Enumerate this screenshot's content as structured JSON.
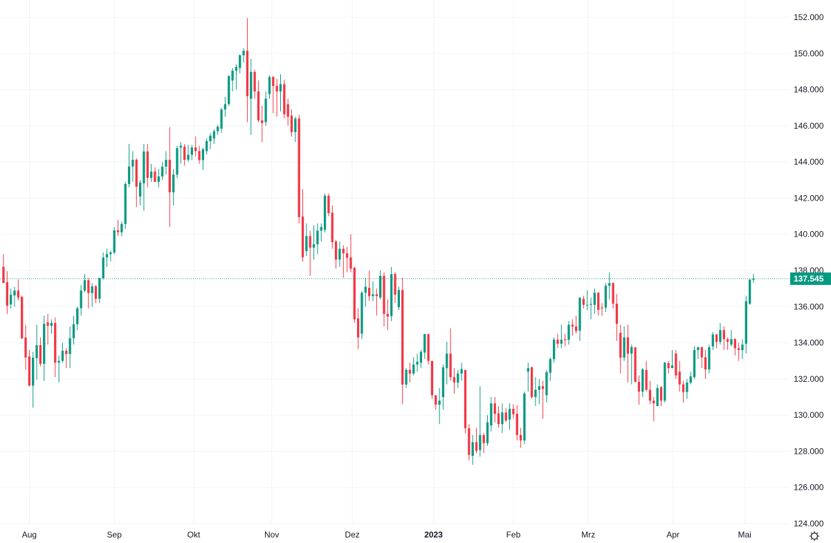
{
  "chart_data": {
    "type": "candlestick",
    "title": "",
    "xlabel": "",
    "ylabel": "",
    "ylim": [
      124,
      152
    ],
    "grid": true,
    "y_ticks": [
      "124.000",
      "126.000",
      "128.000",
      "130.000",
      "132.000",
      "134.000",
      "136.000",
      "138.000",
      "140.000",
      "142.000",
      "144.000",
      "146.000",
      "148.000",
      "150.000",
      "152.000"
    ],
    "x_ticks": [
      {
        "label": "Aug",
        "index": 7
      },
      {
        "label": "Sep",
        "index": 30
      },
      {
        "label": "Okt",
        "index": 51.5
      },
      {
        "label": "Nov",
        "index": 72.6
      },
      {
        "label": "Dez",
        "index": 94.4
      },
      {
        "label": "2023",
        "index": 116.4,
        "bold": true
      },
      {
        "label": "Feb",
        "index": 138
      },
      {
        "label": "Mrz",
        "index": 158.3
      },
      {
        "label": "Apr",
        "index": 181.2
      },
      {
        "label": "Mai",
        "index": 200.6
      }
    ],
    "last_price": 137.545,
    "last_price_label": "137.545",
    "colors": {
      "up": "#089981",
      "down": "#f23645",
      "grid": "#f0f3fa",
      "text": "#131722"
    },
    "ohlc": [
      [
        138.2,
        138.9,
        137.3,
        137.3
      ],
      [
        137.35,
        137.96,
        135.6,
        136.05
      ],
      [
        136.12,
        137.0,
        135.9,
        136.66
      ],
      [
        136.62,
        137.1,
        136.0,
        136.89
      ],
      [
        136.89,
        137.5,
        136.35,
        136.5
      ],
      [
        136.54,
        136.6,
        134.2,
        134.25
      ],
      [
        134.29,
        135.0,
        132.5,
        133.19
      ],
      [
        133.25,
        133.6,
        131.6,
        131.63
      ],
      [
        131.63,
        133.5,
        130.42,
        133.18
      ],
      [
        133.15,
        135.0,
        131.96,
        133.87
      ],
      [
        133.87,
        134.3,
        132.7,
        132.83
      ],
      [
        132.84,
        135.5,
        131.9,
        135.05
      ],
      [
        135.13,
        135.6,
        133.9,
        134.94
      ],
      [
        134.94,
        135.3,
        134.5,
        135.1
      ],
      [
        135.1,
        135.4,
        132.1,
        132.9
      ],
      [
        132.9,
        133.3,
        131.8,
        133.0
      ],
      [
        133.0,
        134.0,
        132.9,
        133.56
      ],
      [
        133.56,
        133.7,
        132.6,
        133.38
      ],
      [
        133.38,
        134.9,
        132.6,
        134.25
      ],
      [
        134.25,
        135.5,
        133.9,
        135.03
      ],
      [
        135.03,
        136.0,
        134.7,
        135.91
      ],
      [
        135.91,
        137.2,
        135.5,
        136.89
      ],
      [
        136.89,
        137.8,
        136.8,
        137.46
      ],
      [
        137.46,
        137.6,
        135.9,
        136.75
      ],
      [
        136.75,
        137.3,
        136.0,
        137.12
      ],
      [
        137.12,
        137.2,
        136.2,
        136.43
      ],
      [
        136.43,
        137.6,
        136.2,
        137.58
      ],
      [
        137.58,
        139.0,
        137.5,
        138.72
      ],
      [
        138.72,
        139.2,
        138.2,
        138.9
      ],
      [
        138.9,
        139.1,
        138.5,
        139.0
      ],
      [
        138.99,
        140.4,
        138.9,
        140.22
      ],
      [
        140.22,
        140.8,
        139.9,
        140.11
      ],
      [
        140.11,
        140.7,
        139.9,
        140.57
      ],
      [
        140.57,
        142.9,
        140.3,
        142.78
      ],
      [
        142.78,
        145.0,
        142.6,
        143.75
      ],
      [
        143.75,
        144.6,
        142.9,
        144.12
      ],
      [
        144.12,
        144.2,
        141.5,
        142.63
      ],
      [
        142.09,
        143.0,
        141.6,
        142.86
      ],
      [
        142.82,
        145.0,
        141.3,
        144.58
      ],
      [
        144.58,
        145.0,
        142.6,
        143.12
      ],
      [
        143.12,
        143.9,
        142.9,
        143.47
      ],
      [
        143.47,
        143.7,
        142.9,
        142.9
      ],
      [
        142.9,
        143.6,
        142.6,
        143.2
      ],
      [
        143.2,
        144.0,
        143.0,
        143.74
      ],
      [
        143.74,
        144.6,
        143.3,
        144.12
      ],
      [
        144.12,
        145.92,
        140.4,
        142.32
      ],
      [
        142.32,
        143.6,
        141.6,
        143.3
      ],
      [
        143.3,
        144.9,
        143.1,
        144.77
      ],
      [
        144.8,
        145.1,
        143.9,
        144.9
      ],
      [
        144.85,
        145.0,
        143.8,
        144.12
      ],
      [
        144.12,
        144.95,
        144.0,
        144.4
      ],
      [
        144.4,
        144.95,
        144.1,
        144.8
      ],
      [
        144.8,
        145.4,
        144.3,
        144.6
      ],
      [
        144.6,
        144.9,
        143.9,
        144.1
      ],
      [
        144.1,
        144.8,
        143.55,
        144.7
      ],
      [
        144.6,
        145.3,
        144.4,
        145.15
      ],
      [
        145.15,
        145.6,
        144.7,
        145.45
      ],
      [
        145.3,
        145.8,
        145.0,
        145.7
      ],
      [
        145.7,
        146.05,
        145.5,
        145.95
      ],
      [
        145.84,
        147.0,
        145.6,
        146.9
      ],
      [
        146.9,
        147.6,
        146.5,
        147.2
      ],
      [
        147.2,
        148.8,
        147.1,
        148.75
      ],
      [
        148.5,
        149.2,
        147.9,
        149.05
      ],
      [
        149.05,
        149.4,
        148.0,
        149.25
      ],
      [
        149.2,
        149.95,
        148.9,
        149.9
      ],
      [
        149.9,
        150.3,
        149.5,
        150.15
      ],
      [
        150.15,
        151.95,
        146.2,
        147.64
      ],
      [
        147.5,
        149.7,
        145.5,
        148.98
      ],
      [
        148.98,
        149.1,
        147.5,
        147.9
      ],
      [
        147.9,
        148.5,
        146.2,
        146.3
      ],
      [
        146.3,
        147.1,
        145.1,
        146.15
      ],
      [
        146.2,
        147.9,
        146.0,
        147.5
      ],
      [
        147.75,
        148.8,
        147.5,
        148.7
      ],
      [
        148.7,
        148.75,
        146.7,
        148.2
      ],
      [
        148.2,
        148.6,
        146.5,
        147.9
      ],
      [
        147.9,
        148.85,
        146.8,
        148.3
      ],
      [
        148.3,
        148.55,
        146.4,
        146.64
      ],
      [
        147.2,
        147.5,
        146.0,
        146.5
      ],
      [
        146.56,
        146.9,
        145.4,
        145.65
      ],
      [
        145.65,
        146.5,
        145.1,
        146.4
      ],
      [
        146.4,
        146.6,
        140.6,
        140.95
      ],
      [
        140.98,
        142.5,
        138.5,
        138.73
      ],
      [
        139.07,
        140.6,
        138.8,
        139.9
      ],
      [
        139.9,
        140.2,
        137.7,
        139.26
      ],
      [
        139.26,
        140.5,
        138.6,
        139.45
      ],
      [
        139.45,
        140.6,
        138.9,
        140.2
      ],
      [
        140.2,
        140.6,
        139.6,
        140.4
      ],
      [
        140.25,
        142.25,
        140.1,
        142.13
      ],
      [
        142.13,
        142.25,
        141.0,
        141.17
      ],
      [
        141.2,
        141.6,
        139.2,
        139.57
      ],
      [
        139.6,
        139.7,
        138.1,
        138.6
      ],
      [
        138.6,
        139.6,
        138.2,
        139.2
      ],
      [
        139.2,
        139.4,
        137.6,
        138.95
      ],
      [
        138.95,
        139.3,
        137.9,
        138.7
      ],
      [
        138.72,
        140.0,
        137.9,
        138.1
      ],
      [
        138.15,
        138.2,
        135.1,
        135.3
      ],
      [
        135.35,
        135.9,
        133.65,
        134.3
      ],
      [
        134.5,
        136.85,
        134.2,
        136.77
      ],
      [
        136.77,
        137.6,
        136.0,
        137.1
      ],
      [
        137.04,
        138.0,
        136.3,
        136.58
      ],
      [
        136.58,
        137.4,
        136.3,
        136.68
      ],
      [
        136.68,
        137.0,
        135.5,
        136.58
      ],
      [
        136.5,
        138.0,
        136.4,
        137.7
      ],
      [
        137.7,
        137.9,
        134.9,
        135.6
      ],
      [
        135.6,
        136.4,
        134.7,
        135.45
      ],
      [
        135.47,
        138.2,
        135.2,
        137.8
      ],
      [
        137.8,
        137.9,
        136.2,
        136.66
      ],
      [
        135.97,
        137.1,
        135.8,
        136.92
      ],
      [
        136.92,
        137.6,
        130.6,
        131.69
      ],
      [
        131.69,
        132.6,
        131.5,
        132.5
      ],
      [
        132.5,
        132.9,
        131.8,
        132.3
      ],
      [
        132.3,
        133.2,
        132.2,
        132.8
      ],
      [
        132.8,
        133.4,
        132.4,
        132.95
      ],
      [
        132.9,
        133.6,
        132.6,
        133.5
      ],
      [
        133.46,
        134.5,
        133.1,
        134.48
      ],
      [
        134.48,
        134.5,
        132.8,
        133.0
      ],
      [
        133.0,
        133.0,
        130.9,
        131.1
      ],
      [
        131.1,
        131.1,
        130.3,
        130.58
      ],
      [
        130.58,
        131.5,
        129.5,
        130.8
      ],
      [
        131.0,
        132.8,
        130.3,
        132.64
      ],
      [
        132.6,
        134.05,
        131.7,
        133.4
      ],
      [
        133.4,
        134.8,
        131.9,
        132.1
      ],
      [
        132.1,
        132.6,
        131.2,
        131.8
      ],
      [
        131.8,
        132.5,
        131.5,
        132.3
      ],
      [
        132.3,
        132.9,
        131.9,
        132.55
      ],
      [
        132.5,
        132.5,
        129.0,
        129.28
      ],
      [
        129.28,
        129.5,
        127.5,
        127.8
      ],
      [
        127.75,
        128.9,
        127.25,
        128.5
      ],
      [
        128.5,
        129.3,
        127.9,
        128.03
      ],
      [
        128.07,
        131.6,
        127.7,
        128.9
      ],
      [
        128.9,
        129.0,
        127.9,
        128.45
      ],
      [
        128.45,
        130.0,
        128.3,
        129.6
      ],
      [
        129.43,
        131.0,
        129.1,
        130.65
      ],
      [
        130.65,
        131.0,
        129.6,
        130.07
      ],
      [
        130.1,
        130.5,
        129.3,
        129.5
      ],
      [
        129.5,
        130.65,
        129.0,
        130.15
      ],
      [
        130.15,
        130.4,
        129.6,
        129.7
      ],
      [
        129.75,
        130.65,
        129.2,
        130.35
      ],
      [
        130.35,
        130.6,
        129.8,
        130.05
      ],
      [
        130.08,
        130.55,
        128.6,
        128.9
      ],
      [
        128.9,
        129.3,
        128.2,
        128.6
      ],
      [
        128.6,
        131.3,
        128.4,
        131.2
      ],
      [
        132.4,
        132.9,
        131.3,
        132.6
      ],
      [
        132.64,
        132.7,
        130.9,
        131.0
      ],
      [
        131.0,
        132.1,
        130.5,
        131.4
      ],
      [
        131.4,
        132.0,
        130.6,
        131.6
      ],
      [
        131.6,
        131.9,
        129.8,
        131.45
      ],
      [
        131.1,
        132.5,
        130.7,
        132.38
      ],
      [
        132.35,
        133.2,
        131.9,
        133.1
      ],
      [
        133.1,
        134.3,
        132.9,
        134.17
      ],
      [
        134.17,
        134.5,
        133.7,
        133.95
      ],
      [
        133.95,
        135.0,
        133.7,
        134.17
      ],
      [
        134.2,
        134.5,
        133.8,
        134.15
      ],
      [
        134.17,
        135.2,
        133.9,
        135.0
      ],
      [
        135.0,
        135.3,
        134.4,
        134.9
      ],
      [
        134.9,
        135.5,
        134.5,
        134.65
      ],
      [
        134.67,
        136.5,
        134.1,
        136.5
      ],
      [
        136.43,
        136.6,
        135.9,
        136.1
      ],
      [
        136.1,
        136.9,
        135.8,
        136.1
      ],
      [
        136.1,
        136.5,
        135.3,
        136.15
      ],
      [
        136.1,
        137.0,
        135.6,
        136.77
      ],
      [
        136.77,
        136.8,
        135.5,
        135.82
      ],
      [
        135.95,
        136.2,
        135.5,
        135.9
      ],
      [
        135.95,
        137.3,
        135.7,
        137.15
      ],
      [
        137.15,
        137.9,
        136.4,
        137.3
      ],
      [
        137.3,
        137.35,
        135.9,
        136.16
      ],
      [
        136.16,
        136.7,
        134.1,
        135.05
      ],
      [
        134.55,
        135.0,
        132.3,
        133.18
      ],
      [
        133.18,
        134.9,
        133.0,
        134.3
      ],
      [
        134.3,
        135.0,
        131.8,
        133.4
      ],
      [
        133.4,
        133.9,
        131.7,
        133.77
      ],
      [
        133.75,
        133.75,
        131.8,
        131.84
      ],
      [
        131.84,
        132.2,
        130.58,
        131.3
      ],
      [
        131.3,
        132.6,
        131.0,
        132.53
      ],
      [
        132.5,
        133.0,
        131.3,
        131.4
      ],
      [
        131.4,
        131.9,
        130.6,
        130.8
      ],
      [
        130.8,
        131.0,
        129.66,
        130.65
      ],
      [
        130.5,
        131.7,
        130.5,
        131.5
      ],
      [
        131.55,
        131.6,
        130.5,
        130.8
      ],
      [
        130.8,
        132.95,
        130.7,
        132.9
      ],
      [
        132.88,
        133.0,
        132.3,
        132.6
      ],
      [
        132.6,
        133.6,
        132.6,
        132.75
      ],
      [
        133.4,
        133.6,
        132.0,
        132.2
      ],
      [
        132.4,
        133.0,
        131.3,
        131.7
      ],
      [
        131.7,
        131.9,
        130.7,
        131.28
      ],
      [
        131.28,
        132.0,
        130.9,
        131.8
      ],
      [
        131.8,
        132.4,
        131.7,
        132.14
      ],
      [
        132.1,
        133.8,
        132.0,
        133.6
      ],
      [
        133.6,
        133.8,
        133.1,
        133.75
      ],
      [
        133.75,
        133.8,
        132.6,
        133.2
      ],
      [
        133.2,
        133.6,
        132.0,
        132.53
      ],
      [
        132.53,
        133.9,
        132.3,
        133.75
      ],
      [
        133.8,
        134.6,
        133.6,
        134.46
      ],
      [
        134.46,
        134.5,
        133.7,
        134.05
      ],
      [
        134.05,
        135.1,
        133.9,
        134.7
      ],
      [
        134.7,
        134.9,
        133.6,
        134.2
      ],
      [
        134.2,
        134.3,
        133.6,
        134.05
      ],
      [
        133.9,
        134.7,
        133.8,
        134.2
      ],
      [
        134.2,
        134.25,
        133.3,
        133.7
      ],
      [
        133.7,
        134.0,
        133.0,
        133.6
      ],
      [
        133.6,
        134.2,
        133.1,
        133.9
      ],
      [
        133.95,
        136.6,
        133.4,
        136.3
      ],
      [
        136.16,
        137.5,
        136.1,
        137.5
      ],
      [
        137.48,
        137.8,
        137.3,
        137.545
      ]
    ]
  },
  "settings_icon": "gear-icon"
}
